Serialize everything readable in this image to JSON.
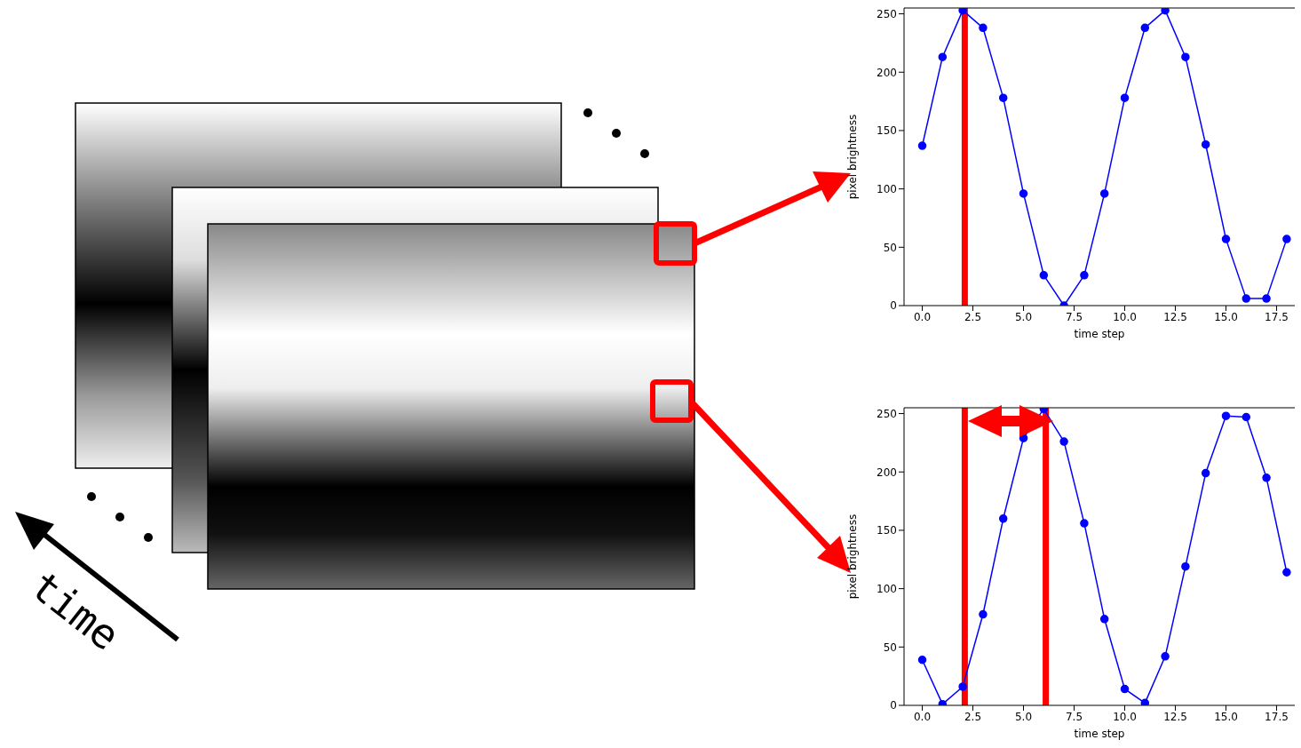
{
  "chart_data": [
    {
      "type": "line",
      "xlabel": "time step",
      "ylabel": "pixel brightness",
      "annotations": [
        "time"
      ],
      "x": [
        0,
        1,
        2,
        3,
        4,
        5,
        6,
        7,
        8,
        9,
        10,
        11,
        12,
        13,
        14,
        15,
        16,
        17,
        18
      ],
      "xlim": [
        -0.9,
        18.4
      ],
      "xticks": [
        {
          "value": 0,
          "label": "0.0"
        },
        {
          "value": 2.5,
          "label": "2.5"
        },
        {
          "value": 5,
          "label": "5.0"
        },
        {
          "value": 7.5,
          "label": "7.5"
        },
        {
          "value": 10,
          "label": "10.0"
        },
        {
          "value": 12.5,
          "label": "12.5"
        },
        {
          "value": 15,
          "label": "15.0"
        },
        {
          "value": 17.5,
          "label": "17.5"
        }
      ],
      "ylim": [
        0,
        255
      ],
      "yticks": [
        0,
        50,
        100,
        150,
        200,
        250
      ],
      "marker": "circle",
      "line_style": "solid",
      "series": [
        {
          "color": "#0000ff",
          "values": [
            137,
            213,
            253,
            238,
            178,
            96,
            26,
            0,
            26,
            96,
            178,
            238,
            253,
            213,
            138,
            57,
            6,
            6,
            57
          ]
        }
      ],
      "ref_lines": [
        {
          "axis": "x",
          "value": 2.1,
          "color": "#ff0000"
        }
      ]
    },
    {
      "type": "line",
      "xlabel": "time step",
      "ylabel": "pixel brightness",
      "x": [
        0,
        1,
        2,
        3,
        4,
        5,
        6,
        7,
        8,
        9,
        10,
        11,
        12,
        13,
        14,
        15,
        16,
        17,
        18
      ],
      "xlim": [
        -0.9,
        18.4
      ],
      "xticks": [
        {
          "value": 0,
          "label": "0.0"
        },
        {
          "value": 2.5,
          "label": "2.5"
        },
        {
          "value": 5,
          "label": "5.0"
        },
        {
          "value": 7.5,
          "label": "7.5"
        },
        {
          "value": 10,
          "label": "10.0"
        },
        {
          "value": 12.5,
          "label": "12.5"
        },
        {
          "value": 15,
          "label": "15.0"
        },
        {
          "value": 17.5,
          "label": "17.5"
        }
      ],
      "ylim": [
        0,
        255
      ],
      "yticks": [
        0,
        50,
        100,
        150,
        200,
        250
      ],
      "marker": "circle",
      "line_style": "solid",
      "series": [
        {
          "color": "#0000ff",
          "values": [
            39,
            1,
            16,
            78,
            160,
            229,
            254,
            226,
            156,
            74,
            14,
            2,
            42,
            119,
            199,
            248,
            247,
            195,
            114
          ]
        }
      ],
      "ref_lines": [
        {
          "axis": "x",
          "value": 2.1,
          "color": "#ff0000"
        },
        {
          "axis": "x",
          "value": 6.1,
          "color": "#ff0000"
        }
      ]
    }
  ]
}
